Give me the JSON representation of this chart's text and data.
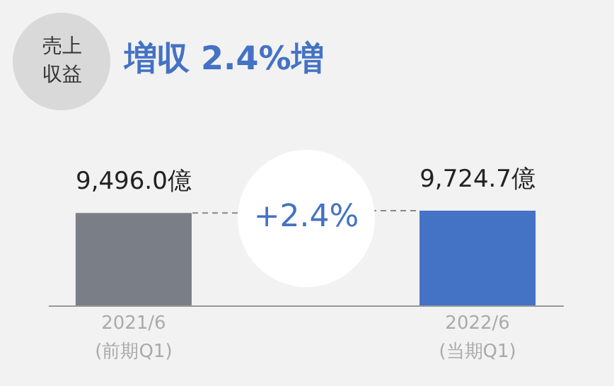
{
  "chart_data": {
    "type": "bar",
    "title": "増収 2.4%増",
    "categories": [
      "2021/6\n(前期Q1)",
      "2022/6\n(当期Q1)"
    ],
    "values": [
      9496.0,
      9724.7
    ],
    "colors": [
      "#7a7f87",
      "#4472c4"
    ],
    "value_labels": [
      "9,496.0億",
      "9,724.7億"
    ],
    "annotations": [
      "売上収益",
      "+2.4%"
    ]
  }
}
